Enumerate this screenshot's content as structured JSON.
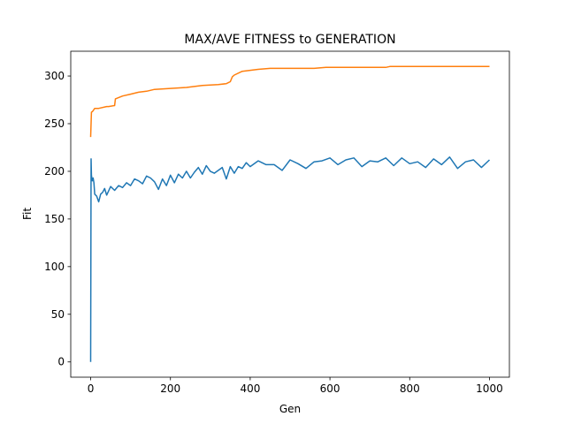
{
  "chart_data": {
    "type": "line",
    "title": "MAX/AVE FITNESS to GENERATION",
    "xlabel": "Gen",
    "ylabel": "Fit",
    "xlim": [
      -50,
      1050
    ],
    "ylim": [
      -16,
      326
    ],
    "xticks": [
      0,
      200,
      400,
      600,
      800,
      1000
    ],
    "yticks": [
      0,
      50,
      100,
      150,
      200,
      250,
      300
    ],
    "grid": false,
    "legend": "none",
    "series": [
      {
        "color": "#1f77b4",
        "x": [
          0,
          1,
          2,
          4,
          6,
          8,
          10,
          15,
          20,
          25,
          30,
          35,
          40,
          50,
          60,
          70,
          80,
          90,
          100,
          110,
          120,
          130,
          140,
          150,
          160,
          170,
          180,
          190,
          200,
          210,
          220,
          230,
          240,
          250,
          260,
          270,
          280,
          290,
          300,
          310,
          320,
          330,
          340,
          350,
          360,
          370,
          380,
          390,
          400,
          420,
          440,
          460,
          480,
          500,
          520,
          540,
          560,
          580,
          600,
          620,
          640,
          660,
          680,
          700,
          720,
          740,
          760,
          780,
          800,
          820,
          840,
          860,
          880,
          900,
          920,
          940,
          960,
          980,
          1000
        ],
        "y": [
          0,
          213,
          196,
          190,
          193,
          188,
          176,
          174,
          168,
          176,
          178,
          182,
          175,
          184,
          180,
          185,
          183,
          188,
          185,
          192,
          190,
          187,
          195,
          193,
          189,
          181,
          192,
          185,
          196,
          188,
          197,
          193,
          200,
          193,
          199,
          204,
          197,
          206,
          200,
          198,
          201,
          204,
          192,
          205,
          198,
          205,
          203,
          209,
          205,
          211,
          207,
          207,
          201,
          212,
          208,
          203,
          210,
          211,
          214,
          207,
          212,
          214,
          205,
          211,
          210,
          214,
          206,
          214,
          208,
          210,
          204,
          213,
          207,
          215,
          203,
          210,
          212,
          204,
          212
        ]
      },
      {
        "color": "#ff7f0e",
        "x": [
          0,
          2,
          5,
          10,
          20,
          40,
          45,
          60,
          62,
          80,
          100,
          120,
          140,
          160,
          200,
          240,
          280,
          320,
          340,
          350,
          355,
          360,
          380,
          400,
          420,
          450,
          500,
          560,
          590,
          650,
          700,
          740,
          750,
          800,
          900,
          1000
        ],
        "y": [
          236,
          262,
          263,
          266,
          266,
          268,
          268,
          269,
          276,
          279,
          281,
          283,
          284,
          286,
          287,
          288,
          290,
          291,
          292,
          294,
          299,
          301,
          305,
          306,
          307,
          308,
          308,
          308,
          309,
          309,
          309,
          309,
          310,
          310,
          310,
          310
        ]
      }
    ]
  }
}
